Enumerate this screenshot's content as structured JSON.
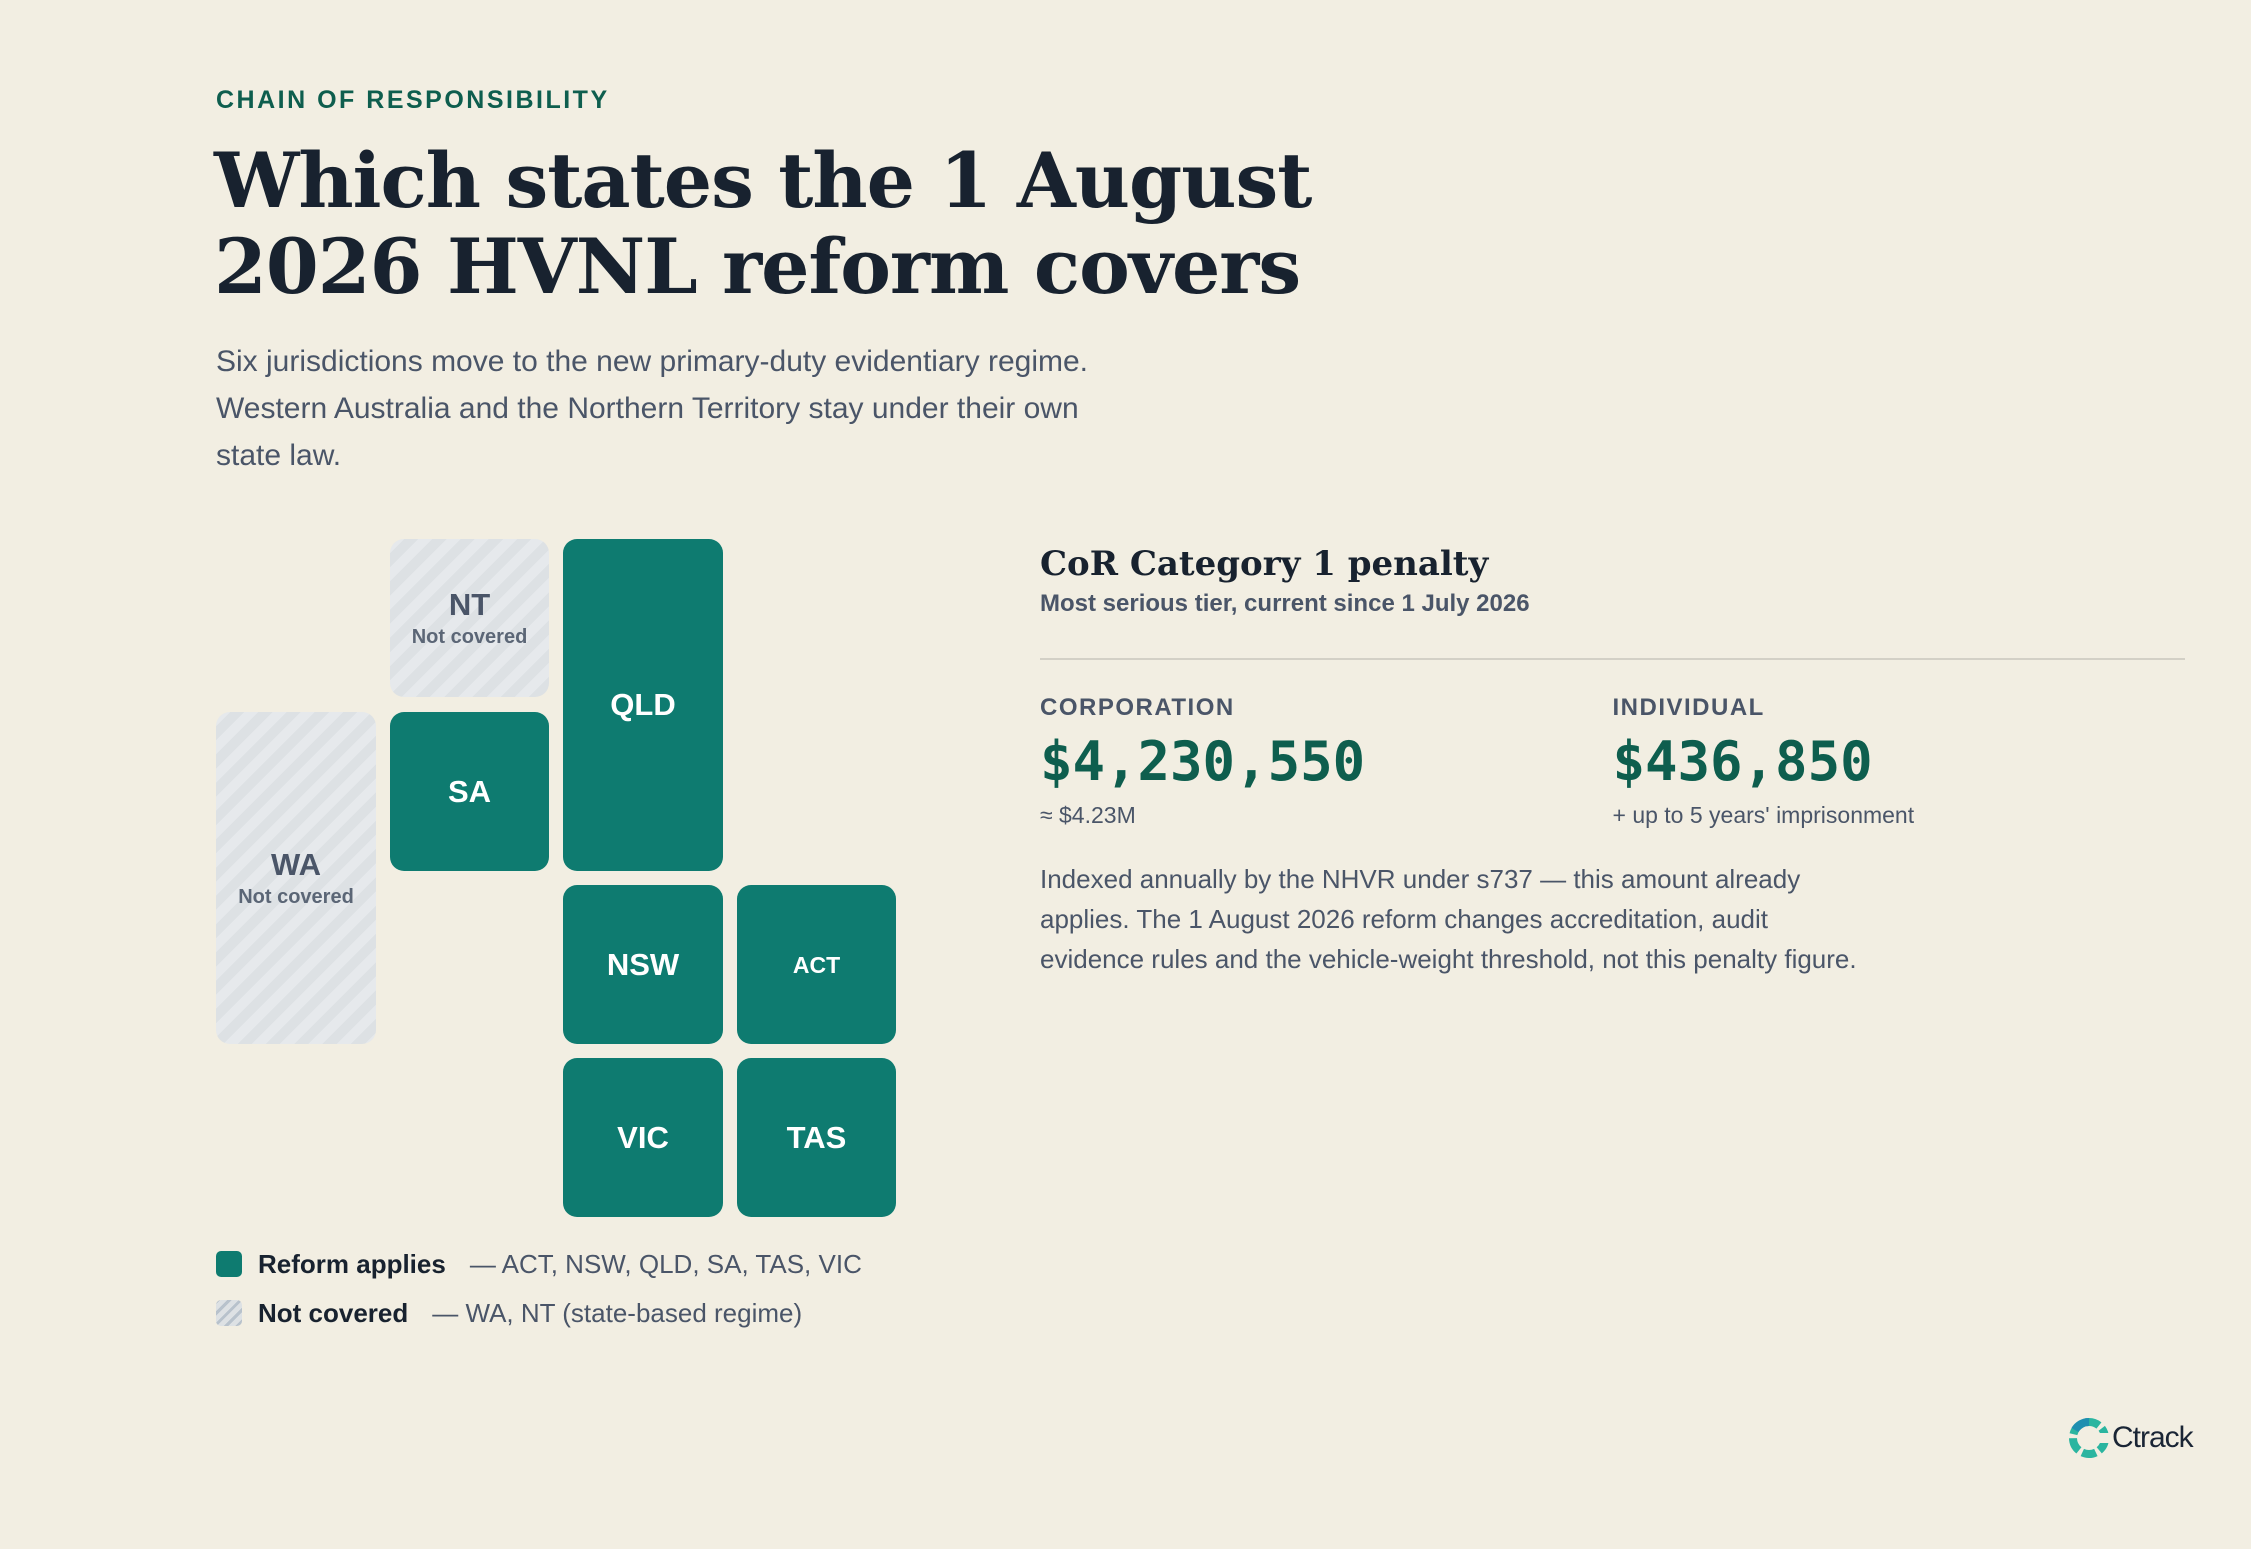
{
  "header": {
    "eyebrow": "CHAIN OF RESPONSIBILITY",
    "title": "Which states the 1 August 2026 HVNL reform covers",
    "dek": "Six jurisdictions move to the new primary-duty evidentiary regime. Western Australia and the Northern Territory stay under their own state law."
  },
  "map": {
    "tiles": [
      {
        "code": "NT",
        "status": "Not covered",
        "covered": false
      },
      {
        "code": "QLD",
        "covered": true
      },
      {
        "code": "WA",
        "status": "Not covered",
        "covered": false
      },
      {
        "code": "SA",
        "covered": true
      },
      {
        "code": "NSW",
        "covered": true
      },
      {
        "code": "ACT",
        "covered": true
      },
      {
        "code": "VIC",
        "covered": true
      },
      {
        "code": "TAS",
        "covered": true
      }
    ],
    "colors": {
      "covered": "#0e7b70",
      "excluded": "#dde1e4"
    }
  },
  "legend": {
    "covered_label": "Reform applies",
    "covered_detail": "— ACT, NSW, QLD, SA, TAS, VIC",
    "excluded_label": "Not covered",
    "excluded_detail": "— WA, NT (state-based regime)"
  },
  "penalty": {
    "title": "CoR Category 1 penalty",
    "subtitle": "Most serious tier, current since 1 July 2026",
    "corporation": {
      "label": "CORPORATION",
      "value": "$4,230,550",
      "note": "≈ $4.23M"
    },
    "individual": {
      "label": "INDIVIDUAL",
      "value": "$436,850",
      "note": "+ up to 5 years' imprisonment"
    },
    "body": "Indexed annually by the NHVR under s737 — this amount already applies. The 1 August 2026 reform changes accreditation, audit evidence rules and the vehicle-weight threshold, not this penalty figure."
  },
  "brand": {
    "logo_text": "Ctrack",
    "accent": "#0e5e4e"
  }
}
